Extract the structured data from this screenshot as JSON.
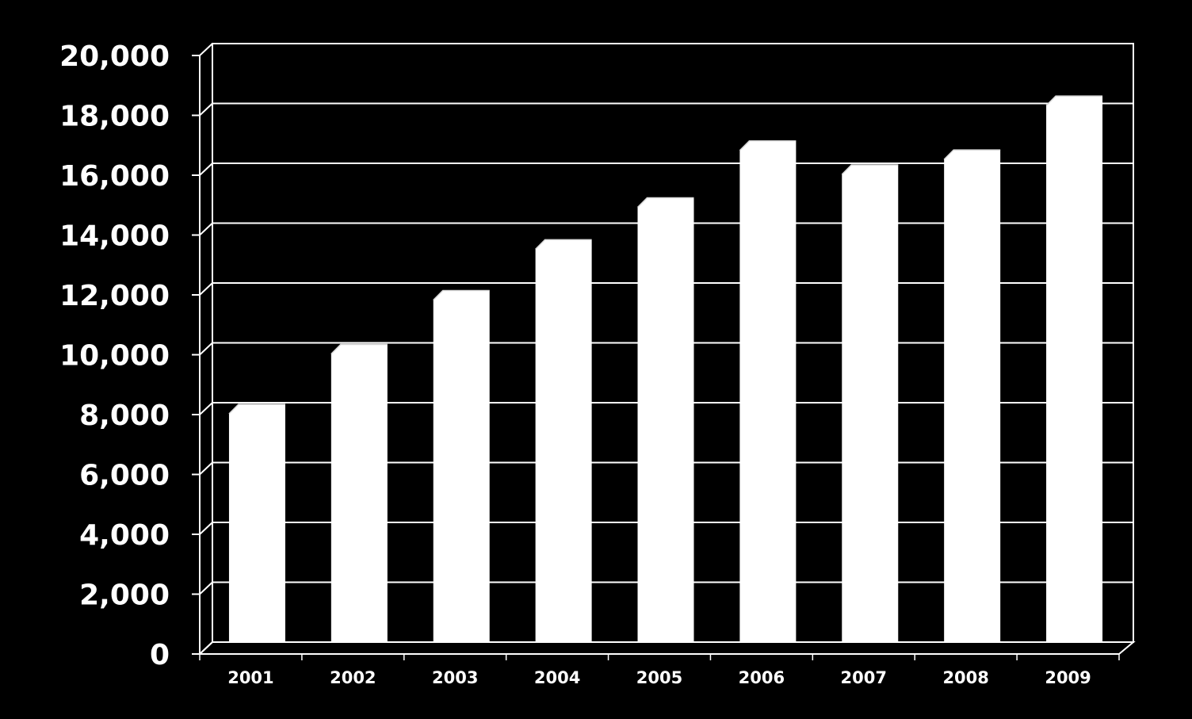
{
  "chart_data": {
    "type": "bar",
    "title": "",
    "xlabel": "",
    "ylabel": "",
    "categories": [
      "2001",
      "2002",
      "2003",
      "2004",
      "2005",
      "2006",
      "2007",
      "2008",
      "2009"
    ],
    "values": [
      8000,
      10000,
      11800,
      13500,
      14900,
      16800,
      16000,
      16500,
      18300
    ],
    "ylim": [
      0,
      20000
    ],
    "y_ticks": [
      "0",
      "2,000",
      "4,000",
      "6,000",
      "8,000",
      "10,000",
      "12,000",
      "14,000",
      "16,000",
      "18,000",
      "20,000"
    ],
    "grid": true,
    "legend": "none",
    "style": "3d-column",
    "colors": {
      "background": "#000000",
      "bar": "#ffffff",
      "grid": "#ffffff",
      "text": "#ffffff"
    }
  }
}
